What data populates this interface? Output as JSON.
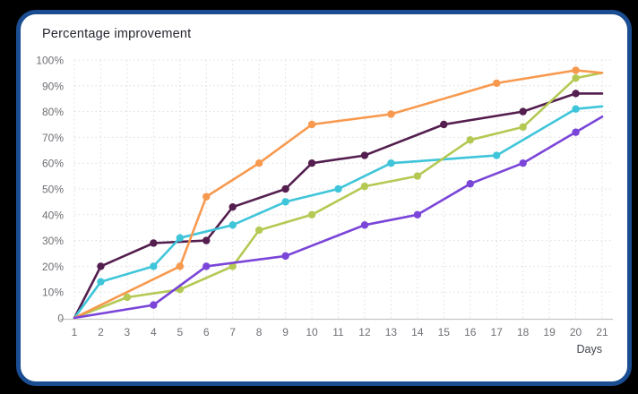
{
  "background_color": "#000000",
  "card": {
    "title": "Percentage improvement",
    "background_color": "#FFFFFF",
    "border_color": "#1B4D92"
  },
  "colors": {
    "grid": "#DCDCDC",
    "axis_line": "#C6C6C6",
    "tick_text": "#6F7075",
    "axis_label_text": "#3F434B",
    "title_text": "#25262F"
  },
  "chart_data": {
    "type": "line",
    "title": "Percentage improvement",
    "xlabel": "Days",
    "ylabel": "",
    "xlim": [
      1,
      21
    ],
    "ylim": [
      0,
      100
    ],
    "grid": "dotted-both-axes",
    "legend": "none",
    "x_ticks": [
      1,
      2,
      3,
      4,
      5,
      6,
      7,
      8,
      9,
      10,
      11,
      12,
      13,
      14,
      15,
      16,
      17,
      18,
      19,
      20,
      21
    ],
    "y_tick_values": [
      100,
      90,
      80,
      70,
      60,
      50,
      40,
      30,
      20,
      10,
      0
    ],
    "y_tick_labels": [
      "100%",
      "90%",
      "80%",
      "70%",
      "60%",
      "50%",
      "40%",
      "30%",
      "20%",
      "10%",
      "0"
    ],
    "series": [
      {
        "name": "plum",
        "color": "#541E4F",
        "points": [
          [
            1,
            0
          ],
          [
            2,
            20
          ],
          [
            4,
            29
          ],
          [
            6,
            30
          ],
          [
            7,
            43
          ],
          [
            9,
            50
          ],
          [
            10,
            60
          ],
          [
            12,
            63
          ],
          [
            15,
            75
          ],
          [
            18,
            80
          ],
          [
            20,
            87
          ],
          [
            21,
            87
          ]
        ]
      },
      {
        "name": "cyan",
        "color": "#3FC5D9",
        "points": [
          [
            1,
            0
          ],
          [
            2,
            14
          ],
          [
            4,
            20
          ],
          [
            5,
            31
          ],
          [
            7,
            36
          ],
          [
            9,
            45
          ],
          [
            11,
            50
          ],
          [
            13,
            60
          ],
          [
            17,
            63
          ],
          [
            20,
            81
          ],
          [
            21,
            82
          ]
        ]
      },
      {
        "name": "green",
        "color": "#B4C953",
        "points": [
          [
            1,
            0
          ],
          [
            3,
            8
          ],
          [
            5,
            11
          ],
          [
            7,
            20
          ],
          [
            8,
            34
          ],
          [
            10,
            40
          ],
          [
            12,
            51
          ],
          [
            14,
            55
          ],
          [
            16,
            69
          ],
          [
            18,
            74
          ],
          [
            20,
            93
          ],
          [
            21,
            95
          ]
        ]
      },
      {
        "name": "orange",
        "color": "#F7994E",
        "points": [
          [
            1,
            0
          ],
          [
            5,
            20
          ],
          [
            6,
            47
          ],
          [
            8,
            60
          ],
          [
            10,
            75
          ],
          [
            13,
            79
          ],
          [
            17,
            91
          ],
          [
            20,
            96
          ],
          [
            21,
            95
          ]
        ]
      },
      {
        "name": "violet",
        "color": "#7A45D8",
        "points": [
          [
            1,
            0
          ],
          [
            4,
            5
          ],
          [
            6,
            20
          ],
          [
            9,
            24
          ],
          [
            12,
            36
          ],
          [
            14,
            40
          ],
          [
            16,
            52
          ],
          [
            18,
            60
          ],
          [
            20,
            72
          ],
          [
            21,
            78
          ]
        ]
      }
    ]
  }
}
